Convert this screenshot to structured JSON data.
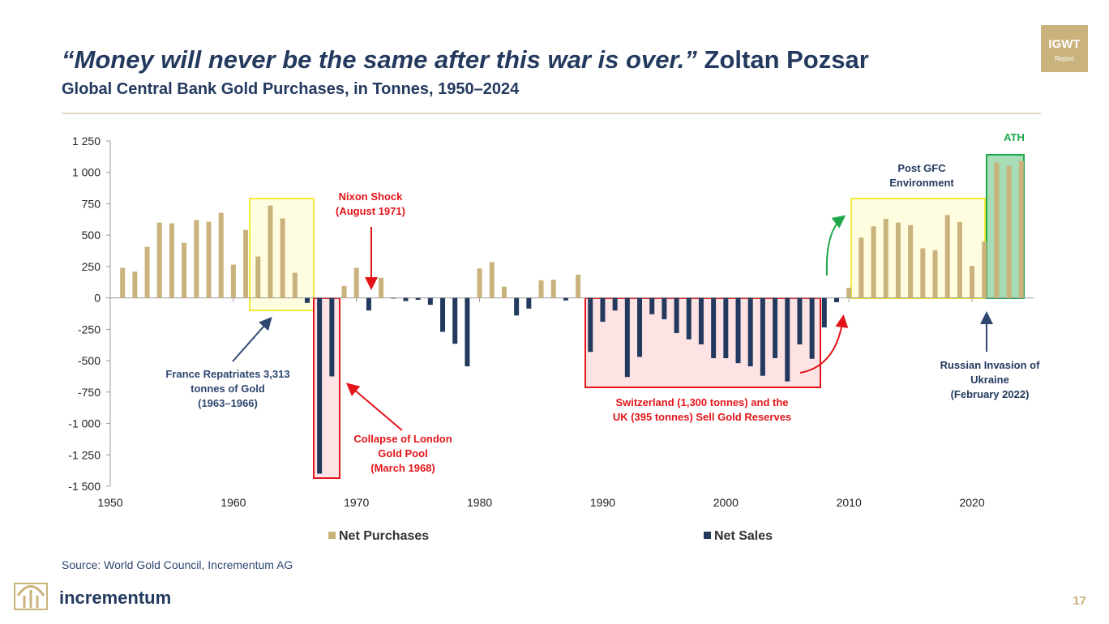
{
  "chart_data": {
    "type": "bar",
    "title_quote": "“Money will never be the same after this war is over.”",
    "title_author": "Zoltan Pozsar",
    "subtitle": "Global Central Bank Gold Purchases, in Tonnes, 1950–2024",
    "badge": [
      "IGWT",
      "Report"
    ],
    "source": "Source: World Gold Council, Incrementum AG",
    "brand": "incrementum",
    "page_number": "17",
    "x": [
      1951,
      1952,
      1953,
      1954,
      1955,
      1956,
      1957,
      1958,
      1959,
      1960,
      1961,
      1962,
      1963,
      1964,
      1965,
      1966,
      1967,
      1968,
      1969,
      1970,
      1971,
      1972,
      1973,
      1974,
      1975,
      1976,
      1977,
      1978,
      1979,
      1980,
      1981,
      1982,
      1983,
      1984,
      1985,
      1986,
      1987,
      1988,
      1989,
      1990,
      1991,
      1992,
      1993,
      1994,
      1995,
      1996,
      1997,
      1998,
      1999,
      2000,
      2001,
      2002,
      2003,
      2004,
      2005,
      2006,
      2007,
      2008,
      2009,
      2010,
      2011,
      2012,
      2013,
      2014,
      2015,
      2016,
      2017,
      2018,
      2019,
      2020,
      2021,
      2022,
      2023,
      2024
    ],
    "series": [
      {
        "name": "Net Purchases",
        "color": "#c9b27c",
        "values": [
          240,
          210,
          407,
          600,
          594,
          439,
          620,
          607,
          678,
          265,
          542,
          330,
          736,
          633,
          200,
          null,
          null,
          null,
          95,
          240,
          null,
          160,
          null,
          null,
          null,
          null,
          null,
          null,
          null,
          235,
          285,
          90,
          null,
          null,
          140,
          145,
          null,
          185,
          null,
          null,
          null,
          null,
          null,
          null,
          null,
          null,
          null,
          null,
          null,
          null,
          null,
          null,
          null,
          null,
          null,
          null,
          null,
          null,
          null,
          80,
          480,
          570,
          630,
          600,
          580,
          395,
          380,
          660,
          605,
          255,
          450,
          1080,
          1050,
          1090
        ]
      },
      {
        "name": "Net Sales",
        "color": "#233a5e",
        "values": [
          null,
          null,
          null,
          null,
          null,
          null,
          null,
          null,
          null,
          null,
          null,
          null,
          null,
          null,
          null,
          -40,
          -1400,
          -625,
          null,
          null,
          -100,
          null,
          -5,
          -25,
          -15,
          -55,
          -270,
          -365,
          -545,
          null,
          null,
          null,
          -140,
          -85,
          null,
          null,
          -20,
          null,
          -430,
          -190,
          -100,
          -630,
          -470,
          -130,
          -170,
          -280,
          -330,
          -370,
          -480,
          -480,
          -520,
          -545,
          -620,
          -480,
          -665,
          -370,
          -485,
          -235,
          -34,
          null,
          null,
          null,
          null,
          null,
          null,
          null,
          null,
          null,
          null,
          null,
          null,
          null,
          null,
          null
        ]
      }
    ],
    "xlim": [
      1950,
      2025
    ],
    "xticks": [
      1950,
      1960,
      1970,
      1980,
      1990,
      2000,
      2010,
      2020
    ],
    "ylim": [
      -1500,
      1250
    ],
    "yticks": [
      {
        "value": -1500,
        "label": "-1 500"
      },
      {
        "value": -1250,
        "label": "-1 250"
      },
      {
        "value": -1000,
        "label": "-1 000"
      },
      -750,
      -500,
      -250,
      0,
      250,
      500,
      750,
      {
        "value": 1000,
        "label": "1 000"
      },
      {
        "value": 1250,
        "label": "1 250"
      }
    ],
    "annotations": [
      {
        "lines": [
          "France Repatriates 3,313",
          "tonnes of Gold",
          "(1963–1966)"
        ],
        "color": "#2e4670"
      },
      {
        "lines": [
          "Nixon Shock",
          "(August 1971)"
        ],
        "color": "#e3151a"
      },
      {
        "lines": [
          "Collapse of London",
          "Gold Pool",
          "(March 1968)"
        ],
        "color": "#e3151a"
      },
      {
        "lines": [
          "Switzerland (1,300 tonnes) and the",
          "UK (395 tonnes) Sell Gold Reserves"
        ],
        "color": "#e3151a"
      },
      {
        "lines": [
          "Post GFC",
          "Environment"
        ],
        "color": "#233a5e"
      },
      {
        "lines": [
          "ATH"
        ],
        "color": "#1fa84a"
      },
      {
        "lines": [
          "Russian Invasion of",
          "Ukraine",
          "(February 2022)"
        ],
        "color": "#233a5e"
      }
    ]
  }
}
